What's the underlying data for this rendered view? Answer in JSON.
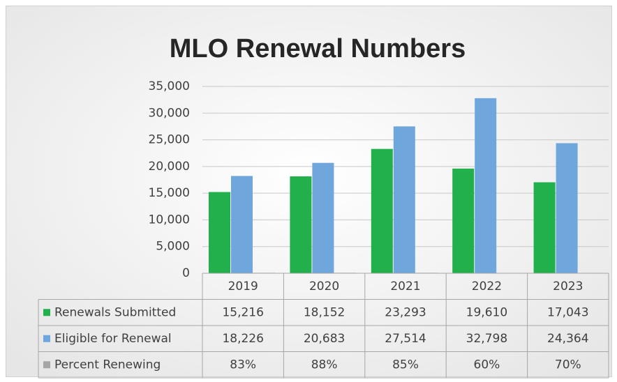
{
  "chart_data": {
    "type": "bar",
    "title": "MLO Renewal Numbers",
    "categories": [
      "2019",
      "2020",
      "2021",
      "2022",
      "2023"
    ],
    "series": [
      {
        "name": "Renewals Submitted",
        "color": "#21b04b",
        "values": [
          15216,
          18152,
          23293,
          19610,
          17043
        ],
        "value_labels": [
          "15,216",
          "18,152",
          "23,293",
          "19,610",
          "17,043"
        ]
      },
      {
        "name": "Eligible for Renewal",
        "color": "#6fa6dc",
        "values": [
          18226,
          20683,
          27514,
          32798,
          24364
        ],
        "value_labels": [
          "18,226",
          "20,683",
          "27,514",
          "32,798",
          "24,364"
        ]
      },
      {
        "name": "Percent Renewing",
        "color": "#a5a5a5",
        "values": [
          83,
          88,
          85,
          60,
          70
        ],
        "value_labels": [
          "83%",
          "88%",
          "85%",
          "60%",
          "70%"
        ]
      }
    ],
    "ylim": [
      0,
      35000
    ],
    "yticks": [
      0,
      {
        "value": 5000,
        "label": "5,000"
      },
      {
        "value": 10000,
        "label": "10,000"
      },
      {
        "value": 15000,
        "label": "15,000"
      },
      {
        "value": 20000,
        "label": "20,000"
      },
      {
        "value": 25000,
        "label": "25,000"
      },
      {
        "value": 30000,
        "label": "30,000"
      },
      {
        "value": 35000,
        "label": "35,000"
      }
    ],
    "grid": true
  }
}
